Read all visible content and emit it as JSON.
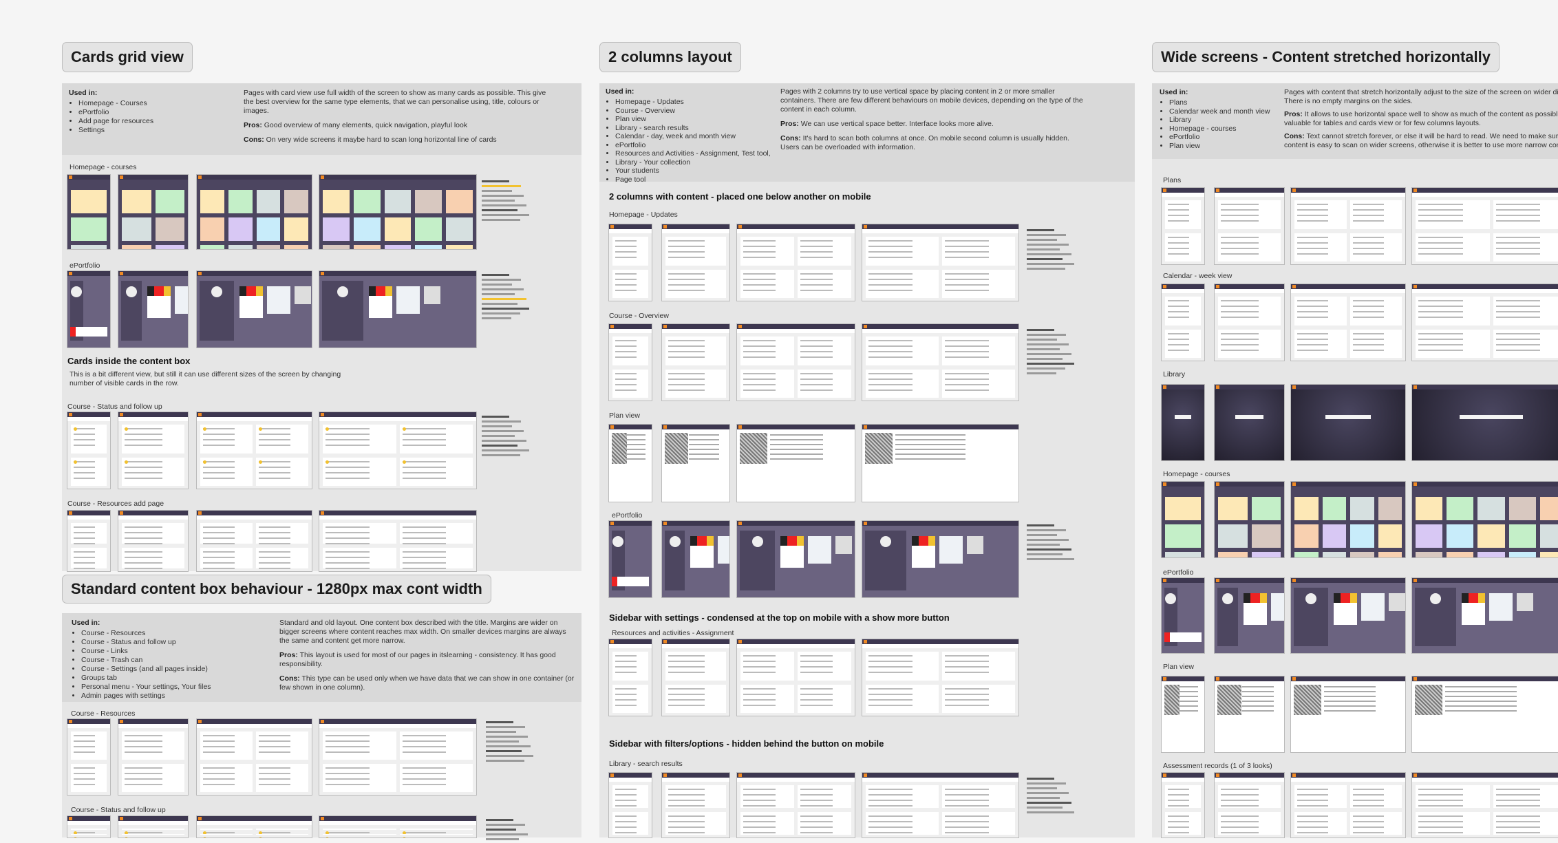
{
  "colors": {
    "page_bg": "#f5f5f5",
    "section_bg": "#e6e6e6",
    "info_bg": "#d9d9d9",
    "thumb_header": "#3d3750",
    "accent_orange": "#f08a24",
    "highlight": "#f2c230"
  },
  "cards_grid": {
    "title": "Cards grid view",
    "used_in_label": "Used in:",
    "used_in": [
      "Homepage - Courses",
      "ePortfolio",
      "Add page for resources",
      "Settings"
    ],
    "description": "Pages with card view use full width of the screen to show as many cards as possible. This give the best overview for the same type elements, that we can personalise using, title, colours or images.",
    "pros_label": "Pros:",
    "pros": " Good overview of many elements, quick navigation, playful look",
    "cons_label": "Cons:",
    "cons": " On very wide screens it maybe hard to scan long horizontal line of cards",
    "groups": [
      "Homepage - courses",
      "ePortfolio",
      "Course - Status and follow up",
      "Course - Resources add page"
    ],
    "subheading": "Cards inside the content box",
    "subheading_text": "This is a bit different view, but still it can use different sizes of the screen by changing number of visible cards in the row."
  },
  "standard_box": {
    "title": "Standard content box behaviour - 1280px max cont width",
    "used_in_label": "Used in:",
    "used_in": [
      "Course - Resources",
      "Course - Status and follow up",
      "Course - Links",
      "Course - Trash can",
      "Course - Settings (and all pages inside)",
      "Groups tab",
      "Personal menu - Your settings, Your files",
      "Admin pages with settings"
    ],
    "description": "Standard and old layout. One content box described with the title. Margins are wider on bigger screens where content reaches max width. On smaller devices margins are always the same and content get more narrow.",
    "pros_label": "Pros:",
    "pros": " This layout is used for most of our pages in itslearning - consistency. It has good responsibility.",
    "cons_label": "Cons:",
    "cons": " This type can be used only when we have data that we can show in one container (or few shown in one column).",
    "groups": [
      "Course - Resources",
      "Course - Status and follow up"
    ]
  },
  "two_columns": {
    "title": "2 columns layout",
    "used_in_label": "Used in:",
    "used_in": [
      "Homepage - Updates",
      "Course - Overview",
      "Plan view",
      "Library - search results",
      "Calendar - day, week and month view",
      "ePortfolio",
      "Resources and Activities - Assignment, Test tool,",
      "Library - Your collection",
      "Your students",
      "Page tool"
    ],
    "description": "Pages with 2 columns try to use vertical space by placing content in 2 or more smaller containers. There are few different behaviours on mobile devices, depending on the type of the content in each column.",
    "pros_label": "Pros:",
    "pros": " We can use vertical space better. Interface looks more alive.",
    "cons_label": "Cons:",
    "cons": " It's hard to scan both columns at once. On mobile second column is usually hidden. Users can be overloaded with information.",
    "headings": [
      "2 columns with content - placed one below another on mobile",
      "Sidebar with settings -  condensed at the top on mobile with a show more button",
      "Sidebar with filters/options - hidden behind the button on mobile"
    ],
    "groups": [
      "Homepage - Updates",
      "Course - Overview",
      "Plan view",
      "ePortfolio",
      "Resources and activities - Assignment",
      "Library - search results"
    ]
  },
  "wide_screens": {
    "title": "Wide screens - Content stretched horizontally",
    "used_in_label": "Used in:",
    "used_in": [
      "Plans",
      "Calendar week and month view",
      "Library",
      "Homepage - courses",
      "ePortfolio",
      "Plan view"
    ],
    "description": "Pages with content that stretch horizontally adjust to the size of the screen on wider displays. There is no empty margins on the sides.",
    "pros_label": "Pros:",
    "pros": " It allows to use horizontal space well to show as much of the content as possible. Very valuable for tables and cards view or for few columns layouts.",
    "cons_label": "Cons:",
    "cons": " Text cannot stretch forever, or else it will be hard to read. We need to make sure our content is easy to scan on wider screens, otherwise it is better to use more narrow content.",
    "groups": [
      "Plans",
      "Calendar - week view",
      "Library",
      "Homepage - courses",
      "ePortfolio",
      "Plan view",
      "Assessment records (1 of 3 looks)"
    ]
  }
}
